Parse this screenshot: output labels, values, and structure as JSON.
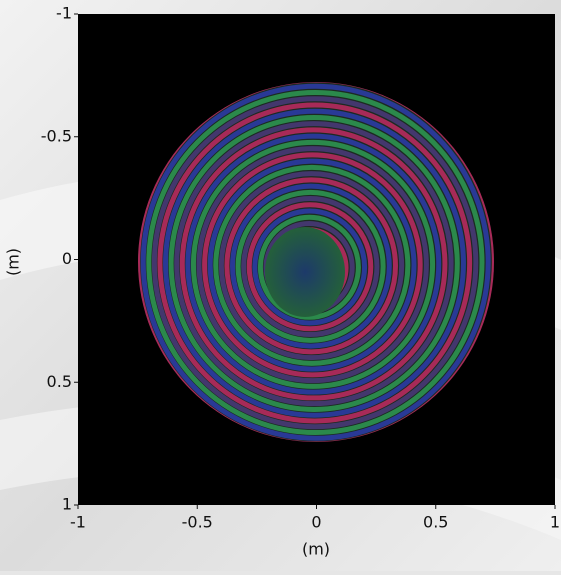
{
  "chart_data": {
    "type": "image",
    "xlabel": "(m)",
    "ylabel": "(m)",
    "xlim": [
      -1,
      1
    ],
    "ylim": [
      -1,
      1
    ],
    "y_axis_inverted": true,
    "xticks": [
      -1,
      -0.5,
      0,
      0.5,
      1
    ],
    "yticks": [
      -1,
      -0.5,
      0,
      0.5,
      1
    ]
  }
}
